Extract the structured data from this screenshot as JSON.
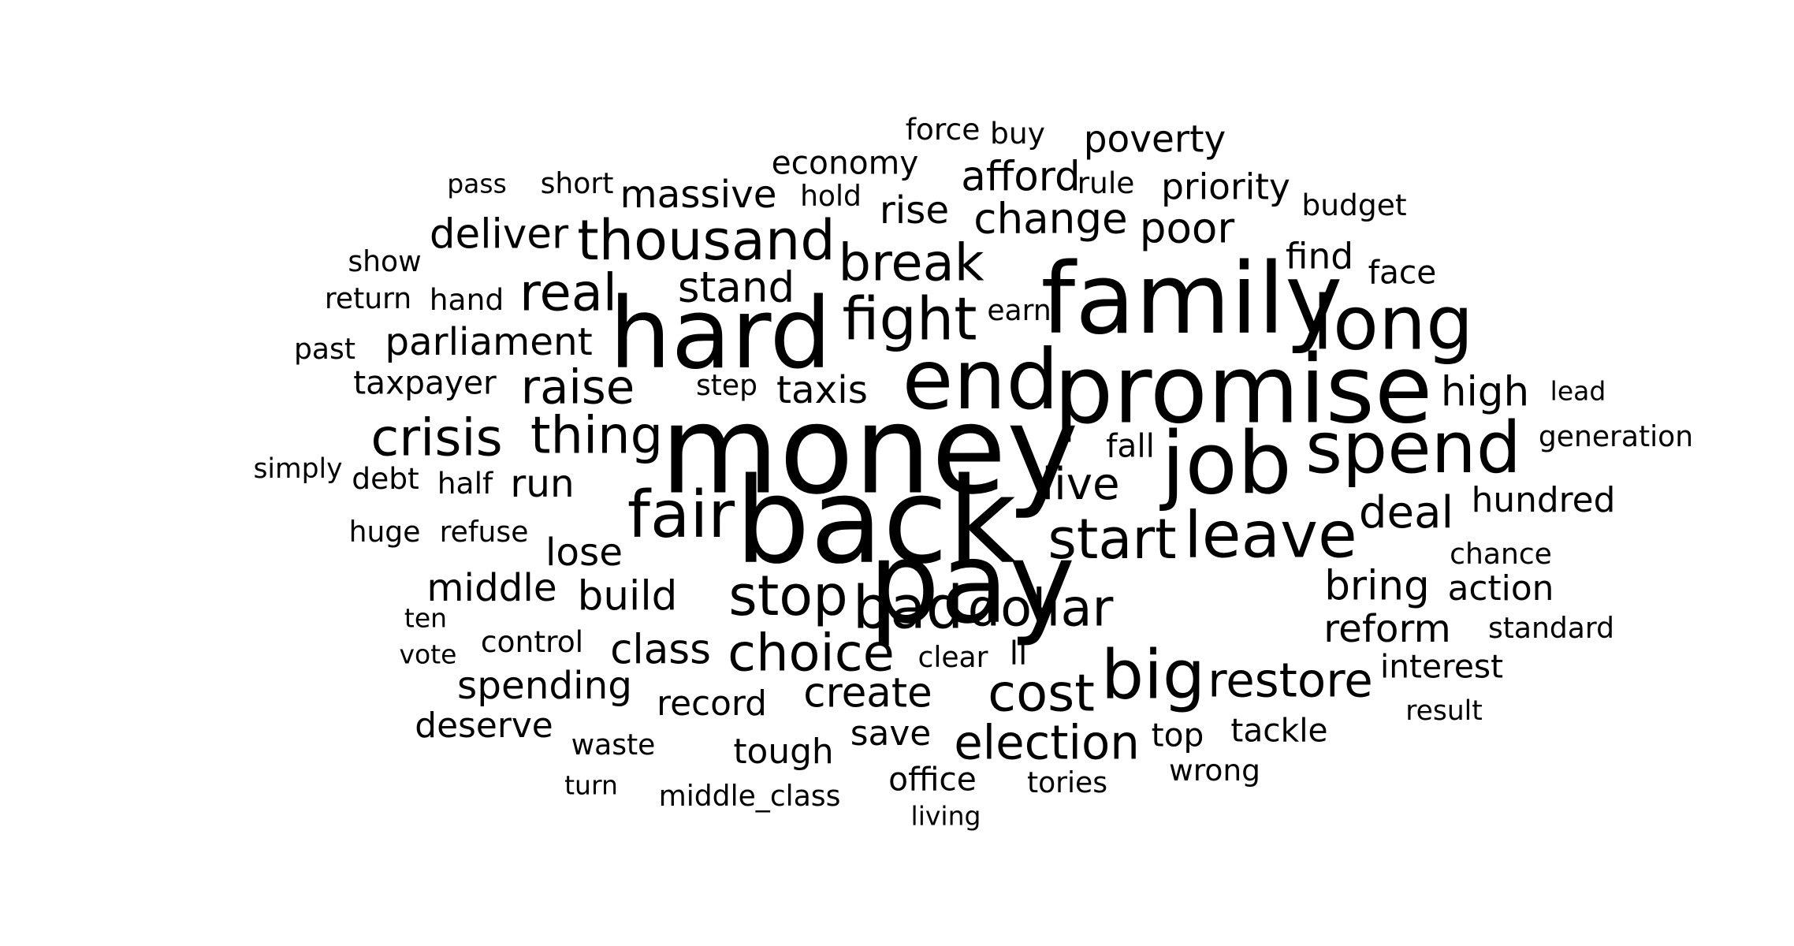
{
  "text_color": "#000000",
  "background_color": "#ffffff",
  "words": [
    {
      "text": "money",
      "weight": 1.0
    },
    {
      "text": "back",
      "weight": 0.97
    },
    {
      "text": "pay",
      "weight": 0.92
    },
    {
      "text": "family",
      "weight": 0.8
    },
    {
      "text": "hard",
      "weight": 0.8
    },
    {
      "text": "promise",
      "weight": 0.77
    },
    {
      "text": "end",
      "weight": 0.68
    },
    {
      "text": "job",
      "weight": 0.7
    },
    {
      "text": "long",
      "weight": 0.61
    },
    {
      "text": "spend",
      "weight": 0.58
    },
    {
      "text": "fair",
      "weight": 0.53
    },
    {
      "text": "big",
      "weight": 0.55
    },
    {
      "text": "leave",
      "weight": 0.52
    },
    {
      "text": "fight",
      "weight": 0.48
    },
    {
      "text": "bad",
      "weight": 0.48
    },
    {
      "text": "thousand",
      "weight": 0.45
    },
    {
      "text": "start",
      "weight": 0.45
    },
    {
      "text": "stop",
      "weight": 0.45
    },
    {
      "text": "real",
      "weight": 0.42
    },
    {
      "text": "break",
      "weight": 0.42
    },
    {
      "text": "crisis",
      "weight": 0.42
    },
    {
      "text": "thing",
      "weight": 0.42
    },
    {
      "text": "dollar",
      "weight": 0.42
    },
    {
      "text": "choice",
      "weight": 0.42
    },
    {
      "text": "cost",
      "weight": 0.42
    },
    {
      "text": "restore",
      "weight": 0.38
    },
    {
      "text": "election",
      "weight": 0.38
    },
    {
      "text": "raise",
      "weight": 0.38
    },
    {
      "text": "live",
      "weight": 0.36
    },
    {
      "text": "deal",
      "weight": 0.36
    },
    {
      "text": "change",
      "weight": 0.34
    },
    {
      "text": "stand",
      "weight": 0.34
    },
    {
      "text": "poor",
      "weight": 0.34
    },
    {
      "text": "afford",
      "weight": 0.33
    },
    {
      "text": "deliver",
      "weight": 0.33
    },
    {
      "text": "high",
      "weight": 0.33
    },
    {
      "text": "build",
      "weight": 0.33
    },
    {
      "text": "create",
      "weight": 0.33
    },
    {
      "text": "bring",
      "weight": 0.33
    },
    {
      "text": "reform",
      "weight": 0.31
    },
    {
      "text": "class",
      "weight": 0.33
    },
    {
      "text": "massive",
      "weight": 0.31
    },
    {
      "text": "rise",
      "weight": 0.31
    },
    {
      "text": "parliament",
      "weight": 0.31
    },
    {
      "text": "taxis",
      "weight": 0.31
    },
    {
      "text": "run",
      "weight": 0.31
    },
    {
      "text": "lose",
      "weight": 0.31
    },
    {
      "text": "middle",
      "weight": 0.31
    },
    {
      "text": "spending",
      "weight": 0.31
    },
    {
      "text": "poverty",
      "weight": 0.3
    },
    {
      "text": "priority",
      "weight": 0.29
    },
    {
      "text": "find",
      "weight": 0.29
    },
    {
      "text": "tough",
      "weight": 0.28
    },
    {
      "text": "save",
      "weight": 0.28
    },
    {
      "text": "hundred",
      "weight": 0.28
    },
    {
      "text": "action",
      "weight": 0.28
    },
    {
      "text": "record",
      "weight": 0.28
    },
    {
      "text": "deserve",
      "weight": 0.28
    },
    {
      "text": "economy",
      "weight": 0.26
    },
    {
      "text": "face",
      "weight": 0.26
    },
    {
      "text": "interest",
      "weight": 0.26
    },
    {
      "text": "tackle",
      "weight": 0.26
    },
    {
      "text": "top",
      "weight": 0.26
    },
    {
      "text": "office",
      "weight": 0.26
    },
    {
      "text": "ll",
      "weight": 0.26
    },
    {
      "text": "taxpayer",
      "weight": 0.26
    },
    {
      "text": "fall",
      "weight": 0.26
    },
    {
      "text": "force",
      "weight": 0.24
    },
    {
      "text": "buy",
      "weight": 0.24
    },
    {
      "text": "rule",
      "weight": 0.24
    },
    {
      "text": "budget",
      "weight": 0.24
    },
    {
      "text": "short",
      "weight": 0.23
    },
    {
      "text": "hold",
      "weight": 0.23
    },
    {
      "text": "show",
      "weight": 0.23
    },
    {
      "text": "return",
      "weight": 0.23
    },
    {
      "text": "hand",
      "weight": 0.24
    },
    {
      "text": "earn",
      "weight": 0.23
    },
    {
      "text": "past",
      "weight": 0.23
    },
    {
      "text": "step",
      "weight": 0.23
    },
    {
      "text": "debt",
      "weight": 0.24
    },
    {
      "text": "half",
      "weight": 0.24
    },
    {
      "text": "generation",
      "weight": 0.23
    },
    {
      "text": "standard",
      "weight": 0.23
    },
    {
      "text": "control",
      "weight": 0.24
    },
    {
      "text": "clear",
      "weight": 0.23
    },
    {
      "text": "wrong",
      "weight": 0.24
    },
    {
      "text": "waste",
      "weight": 0.23
    },
    {
      "text": "tories",
      "weight": 0.23
    },
    {
      "text": "chance",
      "weight": 0.23
    },
    {
      "text": "refuse",
      "weight": 0.23
    },
    {
      "text": "huge",
      "weight": 0.23
    },
    {
      "text": "simply",
      "weight": 0.22
    },
    {
      "text": "result",
      "weight": 0.22
    },
    {
      "text": "lead",
      "weight": 0.21
    },
    {
      "text": "pass",
      "weight": 0.21
    },
    {
      "text": "ten",
      "weight": 0.21
    },
    {
      "text": "vote",
      "weight": 0.21
    },
    {
      "text": "turn",
      "weight": 0.21
    },
    {
      "text": "middle_class",
      "weight": 0.23
    },
    {
      "text": "living",
      "weight": 0.21
    }
  ]
}
